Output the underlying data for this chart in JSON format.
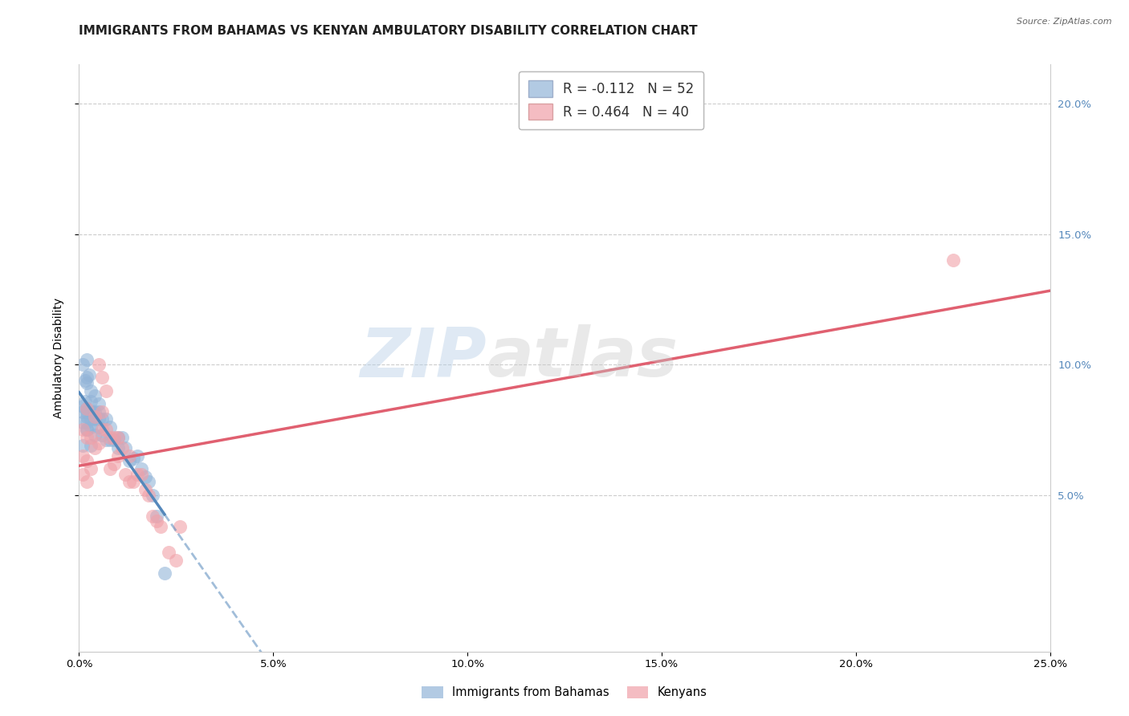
{
  "title": "IMMIGRANTS FROM BAHAMAS VS KENYAN AMBULATORY DISABILITY CORRELATION CHART",
  "source": "Source: ZipAtlas.com",
  "ylabel": "Ambulatory Disability",
  "watermark_zip": "ZIP",
  "watermark_atlas": "atlas",
  "xlim": [
    0.0,
    0.25
  ],
  "ylim": [
    -0.01,
    0.215
  ],
  "yticks_right": [
    0.05,
    0.1,
    0.15,
    0.2
  ],
  "ytick_labels_right": [
    "5.0%",
    "10.0%",
    "15.0%",
    "20.0%"
  ],
  "xtick_labels": [
    "0.0%",
    "5.0%",
    "10.0%",
    "15.0%",
    "20.0%",
    "25.0%"
  ],
  "legend_r1": "R = -0.112",
  "legend_n1": "N = 52",
  "legend_r2": "R = 0.464",
  "legend_n2": "N = 40",
  "blue_color": "#92B4D8",
  "pink_color": "#F0A0A8",
  "line_blue": "#5588BB",
  "line_pink": "#E06070",
  "blue_x": [
    0.001,
    0.001,
    0.001,
    0.001,
    0.001,
    0.0015,
    0.0015,
    0.002,
    0.002,
    0.002,
    0.002,
    0.002,
    0.002,
    0.002,
    0.002,
    0.002,
    0.0025,
    0.003,
    0.003,
    0.003,
    0.003,
    0.003,
    0.003,
    0.0035,
    0.004,
    0.004,
    0.004,
    0.004,
    0.005,
    0.005,
    0.005,
    0.005,
    0.006,
    0.006,
    0.007,
    0.007,
    0.008,
    0.008,
    0.009,
    0.01,
    0.01,
    0.011,
    0.012,
    0.013,
    0.014,
    0.015,
    0.016,
    0.017,
    0.018,
    0.019,
    0.02,
    0.022
  ],
  "blue_y": [
    0.069,
    0.078,
    0.082,
    0.084,
    0.1,
    0.094,
    0.086,
    0.075,
    0.075,
    0.078,
    0.08,
    0.082,
    0.083,
    0.093,
    0.095,
    0.102,
    0.096,
    0.069,
    0.076,
    0.079,
    0.082,
    0.086,
    0.09,
    0.082,
    0.073,
    0.079,
    0.082,
    0.088,
    0.076,
    0.079,
    0.082,
    0.085,
    0.073,
    0.079,
    0.071,
    0.079,
    0.071,
    0.076,
    0.071,
    0.068,
    0.072,
    0.072,
    0.068,
    0.063,
    0.064,
    0.065,
    0.06,
    0.057,
    0.055,
    0.05,
    0.042,
    0.02
  ],
  "pink_x": [
    0.001,
    0.001,
    0.001,
    0.002,
    0.002,
    0.002,
    0.002,
    0.003,
    0.003,
    0.004,
    0.004,
    0.005,
    0.005,
    0.006,
    0.006,
    0.006,
    0.007,
    0.007,
    0.008,
    0.008,
    0.009,
    0.009,
    0.01,
    0.01,
    0.011,
    0.012,
    0.013,
    0.013,
    0.014,
    0.015,
    0.016,
    0.017,
    0.018,
    0.019,
    0.02,
    0.021,
    0.023,
    0.025,
    0.026,
    0.225
  ],
  "pink_y": [
    0.058,
    0.065,
    0.075,
    0.055,
    0.063,
    0.072,
    0.083,
    0.06,
    0.072,
    0.068,
    0.08,
    0.07,
    0.1,
    0.075,
    0.082,
    0.095,
    0.075,
    0.09,
    0.06,
    0.072,
    0.062,
    0.072,
    0.065,
    0.072,
    0.068,
    0.058,
    0.055,
    0.065,
    0.055,
    0.058,
    0.058,
    0.052,
    0.05,
    0.042,
    0.04,
    0.038,
    0.028,
    0.025,
    0.038,
    0.14
  ],
  "title_fontsize": 11,
  "axis_fontsize": 10,
  "tick_fontsize": 9.5
}
